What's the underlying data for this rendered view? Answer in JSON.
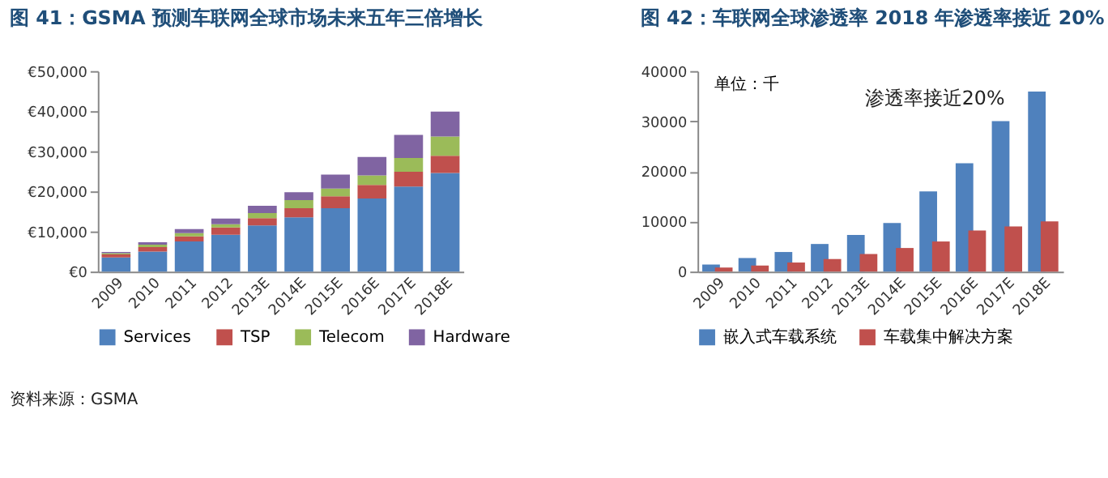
{
  "chart_data": [
    {
      "type": "bar",
      "title": "图 41：GSMA 预测车联网全球市场未来五年三倍增长",
      "stacked": true,
      "legend": "bottom",
      "grid": false,
      "categories": [
        "2009",
        "2010",
        "2011",
        "2012",
        "2013E",
        "2014E",
        "2015E",
        "2016E",
        "2017E",
        "2018E"
      ],
      "series": [
        {
          "name": "Services",
          "color": "#4f81bd",
          "values": [
            3500,
            5000,
            7500,
            9200,
            11500,
            13500,
            15800,
            18200,
            21200,
            24600
          ]
        },
        {
          "name": "TSP",
          "color": "#c0504d",
          "values": [
            800,
            1100,
            1300,
            1800,
            1800,
            2300,
            3000,
            3400,
            3700,
            4300
          ]
        },
        {
          "name": "Telecom",
          "color": "#9bbb59",
          "values": [
            300,
            600,
            800,
            800,
            1300,
            2000,
            1900,
            2400,
            3400,
            4800
          ]
        },
        {
          "name": "Hardware",
          "color": "#8064a2",
          "values": [
            300,
            600,
            1000,
            1400,
            1800,
            2000,
            3500,
            4600,
            5800,
            6200
          ]
        }
      ],
      "ylim": [
        0,
        50000
      ],
      "yticks": [
        {
          "value": 0,
          "label": "€0"
        },
        {
          "value": 10000,
          "label": "€10,000"
        },
        {
          "value": 20000,
          "label": "€20,000"
        },
        {
          "value": 30000,
          "label": "€30,000"
        },
        {
          "value": 40000,
          "label": "€40,000"
        },
        {
          "value": 50000,
          "label": "€50,000"
        }
      ],
      "annotations": [
        "资料来源：GSMA"
      ]
    },
    {
      "type": "bar",
      "title": "图 42：车联网全球渗透率 2018 年渗透率接近 20%",
      "ylabel": "单位：千",
      "legend": "bottom",
      "grid": false,
      "categories": [
        "2009",
        "2010",
        "2011",
        "2012",
        "2013E",
        "2014E",
        "2015E",
        "2016E",
        "2017E",
        "2018E"
      ],
      "series": [
        {
          "name": "嵌入式车载系统",
          "color": "#4f81bd",
          "values": [
            1400,
            2700,
            3900,
            5500,
            7300,
            9700,
            16000,
            21600,
            30000,
            35900
          ]
        },
        {
          "name": "车载集中解决方案",
          "color": "#c0504d",
          "values": [
            800,
            1200,
            1800,
            2500,
            3500,
            4700,
            6000,
            8200,
            9000,
            10000
          ]
        }
      ],
      "ylim": [
        0,
        40000
      ],
      "yticks": [
        {
          "value": 0,
          "label": "0"
        },
        {
          "value": 10000,
          "label": "10000"
        },
        {
          "value": 20000,
          "label": "20000"
        },
        {
          "value": 30000,
          "label": "30000"
        },
        {
          "value": 40000,
          "label": "40000"
        }
      ],
      "annotations": [
        {
          "text": "渗透率接近20%",
          "x": "2018E",
          "y": 35900
        }
      ]
    }
  ]
}
